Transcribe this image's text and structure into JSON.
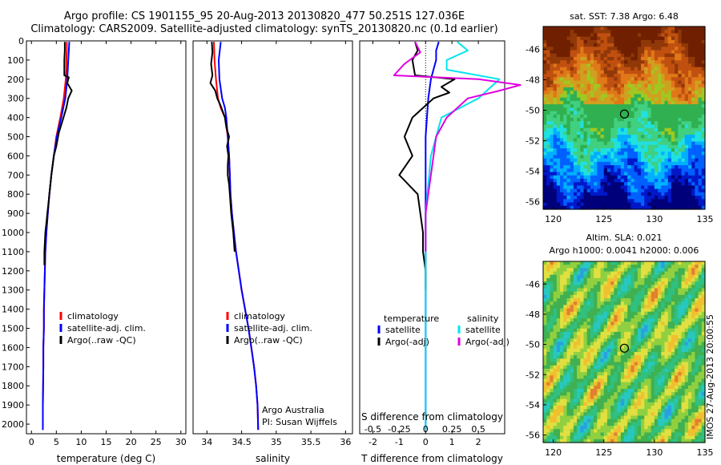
{
  "header": {
    "line1": "Argo profile: CS 1901155_95 20-Aug-2013 20130820_477 50.251S 127.036E",
    "line2": "Climatology: CARS2009. Satellite-adjusted climatology: synTS_20130820.nc (0.1d earlier)"
  },
  "colors": {
    "climatology": "#ff0000",
    "satellite": "#0000ff",
    "argo": "#000000",
    "temp_satellite": "#0000ff",
    "temp_argo": "#000000",
    "sal_satellite": "#00e5ee",
    "sal_argo": "#e000e0"
  },
  "chart_data": [
    {
      "type": "line",
      "panel": "temperature",
      "xlabel": "temperature (deg C)",
      "ylabel": "",
      "xlim": [
        -1,
        31
      ],
      "ylim": [
        2050,
        0
      ],
      "x_ticks": [
        0,
        5,
        10,
        15,
        20,
        25,
        30
      ],
      "y_ticks": [
        0,
        100,
        200,
        300,
        400,
        500,
        600,
        700,
        800,
        900,
        1000,
        1100,
        1200,
        1300,
        1400,
        1500,
        1600,
        1700,
        1800,
        1900,
        2000
      ],
      "legend": [
        "climatology",
        "satellite-adj. clim.",
        "Argo(..raw -QC)"
      ],
      "series": [
        {
          "name": "climatology",
          "x": [
            7.1,
            7.1,
            7.0,
            7.0,
            6.9,
            6.5,
            5.8,
            5.0,
            4.5,
            4.0,
            3.6,
            3.3,
            3.0,
            2.8,
            2.7,
            2.6,
            2.5,
            2.5,
            2.4,
            2.4,
            2.3,
            2.3
          ],
          "y": [
            5,
            50,
            100,
            150,
            200,
            300,
            400,
            500,
            600,
            700,
            800,
            900,
            1000,
            1100,
            1200,
            1300,
            1400,
            1500,
            1600,
            1700,
            1900,
            2030
          ]
        },
        {
          "name": "satellite-adj. clim.",
          "x": [
            7.6,
            7.5,
            7.4,
            7.3,
            7.2,
            6.8,
            6.0,
            5.1,
            4.5,
            4.0,
            3.6,
            3.3,
            3.0,
            2.8,
            2.7,
            2.6,
            2.5,
            2.5,
            2.4,
            2.4,
            2.3,
            2.3
          ],
          "y": [
            5,
            50,
            100,
            150,
            200,
            300,
            400,
            500,
            600,
            700,
            800,
            900,
            1000,
            1100,
            1200,
            1300,
            1400,
            1500,
            1600,
            1700,
            1900,
            2030
          ]
        },
        {
          "name": "Argo(..raw -QC)",
          "x": [
            6.7,
            6.7,
            6.6,
            6.6,
            7.5,
            7.2,
            8.1,
            7.4,
            7.0,
            6.2,
            5.5,
            5.0,
            4.5,
            4.0,
            3.7,
            3.4,
            3.2,
            3.0,
            2.8,
            2.7,
            2.6,
            2.6,
            2.6
          ],
          "y": [
            5,
            50,
            100,
            180,
            190,
            220,
            260,
            300,
            350,
            420,
            480,
            550,
            600,
            700,
            780,
            850,
            900,
            950,
            1000,
            1050,
            1100,
            1150,
            1170
          ]
        }
      ]
    },
    {
      "type": "line",
      "panel": "salinity",
      "xlabel": "salinity",
      "xlim": [
        33.8,
        36.1
      ],
      "ylim": [
        2050,
        0
      ],
      "x_ticks": [
        34,
        34.5,
        35,
        35.5,
        36
      ],
      "legend": [
        "climatology",
        "satellite-adj. clim.",
        "Argo(..raw -QC)"
      ],
      "annotation": [
        "Argo Australia",
        "PI: Susan Wijffels"
      ],
      "series": [
        {
          "name": "climatology",
          "x": [
            34.1,
            34.11,
            34.13,
            34.16,
            34.2,
            34.26,
            34.3,
            34.32,
            34.33,
            34.34,
            34.36,
            34.39,
            34.42,
            34.46,
            34.5,
            34.55,
            34.6,
            34.64,
            34.68,
            34.71,
            34.73,
            34.74
          ],
          "y": [
            5,
            100,
            200,
            300,
            350,
            400,
            500,
            600,
            700,
            800,
            900,
            1000,
            1100,
            1200,
            1300,
            1400,
            1500,
            1600,
            1700,
            1800,
            1900,
            2030
          ]
        },
        {
          "name": "satellite-adj. clim.",
          "x": [
            34.2,
            34.17,
            34.18,
            34.22,
            34.26,
            34.28,
            34.3,
            34.32,
            34.33,
            34.34,
            34.36,
            34.39,
            34.42,
            34.46,
            34.5,
            34.55,
            34.6,
            34.64,
            34.68,
            34.71,
            34.73,
            34.74
          ],
          "y": [
            5,
            100,
            200,
            300,
            350,
            400,
            500,
            600,
            700,
            800,
            900,
            1000,
            1100,
            1200,
            1300,
            1400,
            1500,
            1600,
            1700,
            1800,
            1900,
            2030
          ]
        },
        {
          "name": "Argo(..raw -QC)",
          "x": [
            34.07,
            34.08,
            34.06,
            34.08,
            34.05,
            34.12,
            34.15,
            34.2,
            34.26,
            34.28,
            34.32,
            34.29,
            34.31,
            34.3,
            34.3,
            34.32,
            34.33,
            34.35,
            34.38,
            34.4
          ],
          "y": [
            5,
            60,
            120,
            180,
            220,
            260,
            300,
            340,
            400,
            450,
            500,
            550,
            600,
            650,
            700,
            750,
            800,
            900,
            1000,
            1100
          ]
        }
      ]
    },
    {
      "type": "line",
      "panel": "difference",
      "xlabel": "T difference from climatology",
      "x2label": "S difference from climatology",
      "xlim": [
        -2.5,
        3
      ],
      "ylim": [
        2050,
        0
      ],
      "x_ticks": [
        -2,
        -1,
        0,
        1,
        2
      ],
      "x_tick_labels": [
        "-2",
        "-1",
        "0",
        "1",
        "2"
      ],
      "x2_ticks": [
        -0.5,
        -0.25,
        0,
        0.25,
        0.5
      ],
      "x2_tick_labels": [
        "-0.5",
        "-0.25",
        "0",
        "0.25",
        "0.5"
      ],
      "legend_titles": [
        "temperature",
        "salinity"
      ],
      "legend": [
        "satellite",
        "Argo(-adj)",
        "satellite",
        "Argo(-adj)"
      ],
      "series": [
        {
          "name": "satellite",
          "group": "temperature",
          "x": [
            0.5,
            0.4,
            0.4,
            0.3,
            0.2,
            0.1,
            0.0,
            0.0,
            0.0,
            0.0,
            0.0
          ],
          "y": [
            5,
            50,
            100,
            150,
            200,
            300,
            500,
            800,
            1200,
            1600,
            2030
          ]
        },
        {
          "name": "Argo(-adj)",
          "group": "temperature",
          "x": [
            -0.4,
            -0.3,
            -0.5,
            -0.4,
            1.1,
            0.6,
            0.9,
            0.3,
            -0.5,
            -0.8,
            -0.5,
            -1.0,
            -0.3,
            -0.2,
            -0.1,
            -0.1,
            0.0,
            0.0
          ],
          "y": [
            5,
            50,
            100,
            180,
            200,
            240,
            270,
            300,
            400,
            500,
            600,
            700,
            800,
            900,
            1000,
            1100,
            1200,
            1300
          ]
        },
        {
          "name": "satellite",
          "group": "salinity",
          "x": [
            0.3,
            0.4,
            0.2,
            0.2,
            0.7,
            0.5,
            0.15,
            0.05,
            0.0,
            0.0,
            0.0
          ],
          "y": [
            5,
            50,
            100,
            150,
            200,
            300,
            400,
            600,
            900,
            1400,
            2030
          ]
        },
        {
          "name": "Argo(-adj)",
          "group": "salinity",
          "x": [
            -0.1,
            -0.05,
            -0.2,
            -0.3,
            0.5,
            0.9,
            0.7,
            0.4,
            0.2,
            0.1,
            0.05,
            0.0,
            0.0
          ],
          "y": [
            5,
            60,
            120,
            180,
            200,
            230,
            260,
            300,
            400,
            500,
            700,
            900,
            1100
          ]
        }
      ]
    },
    {
      "type": "heatmap",
      "panel": "sst-map",
      "title": "sat. SST: 7.38  Argo: 6.48",
      "xlim": [
        119,
        135
      ],
      "ylim": [
        -56.5,
        -44.5
      ],
      "x_ticks": [
        120,
        125,
        130,
        135
      ],
      "y_ticks": [
        -46,
        -48,
        -50,
        -52,
        -54,
        -56
      ],
      "marker": {
        "x": 127.036,
        "y": -50.251
      }
    },
    {
      "type": "heatmap",
      "panel": "sla-map",
      "title": "Altim. SLA: 0.021",
      "subtitle": "Argo h1000: 0.0041  h2000: 0.006",
      "xlim": [
        119,
        135
      ],
      "ylim": [
        -56.5,
        -44.5
      ],
      "x_ticks": [
        120,
        125,
        130,
        135
      ],
      "y_ticks": [
        -46,
        -48,
        -50,
        -52,
        -54,
        -56
      ],
      "marker": {
        "x": 127.036,
        "y": -50.251
      }
    }
  ],
  "side_label": "IMOS 27-Aug-2013 20:00:55"
}
